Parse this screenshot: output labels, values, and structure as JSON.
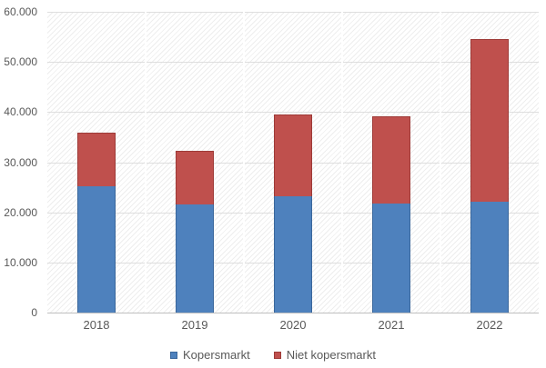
{
  "chart_data": {
    "type": "bar",
    "stacked": true,
    "title": "",
    "xlabel": "",
    "ylabel": "",
    "categories": [
      "2018",
      "2019",
      "2020",
      "2021",
      "2022"
    ],
    "series": [
      {
        "name": "Kopersmarkt",
        "color": "#4e81bd",
        "border_color": "#3a679c",
        "values": [
          25200,
          21500,
          23200,
          21700,
          22100
        ]
      },
      {
        "name": "Niet kopersmarkt",
        "color": "#bf504d",
        "border_color": "#9e3a37",
        "values": [
          10700,
          10700,
          16300,
          17500,
          32400
        ]
      }
    ],
    "totals": [
      35900,
      32200,
      39500,
      39200,
      54500
    ],
    "ylim": [
      0,
      60000
    ],
    "y_ticks": [
      {
        "value": 0,
        "label": "0"
      },
      {
        "value": 10000,
        "label": "10.000"
      },
      {
        "value": 20000,
        "label": "20.000"
      },
      {
        "value": 30000,
        "label": "30.000"
      },
      {
        "value": 40000,
        "label": "40.000"
      },
      {
        "value": 50000,
        "label": "50.000"
      },
      {
        "value": 60000,
        "label": "60.000"
      }
    ],
    "grid": "horizontal-major",
    "legend_position": "bottom-center"
  },
  "colors": {
    "background": "#ffffff",
    "hatch_stripe": "rgba(0,0,0,0.065)",
    "gridline": "#dedede",
    "axis_line": "#bfbfbf",
    "category_separator": "#ffffff",
    "text": "#595959"
  }
}
